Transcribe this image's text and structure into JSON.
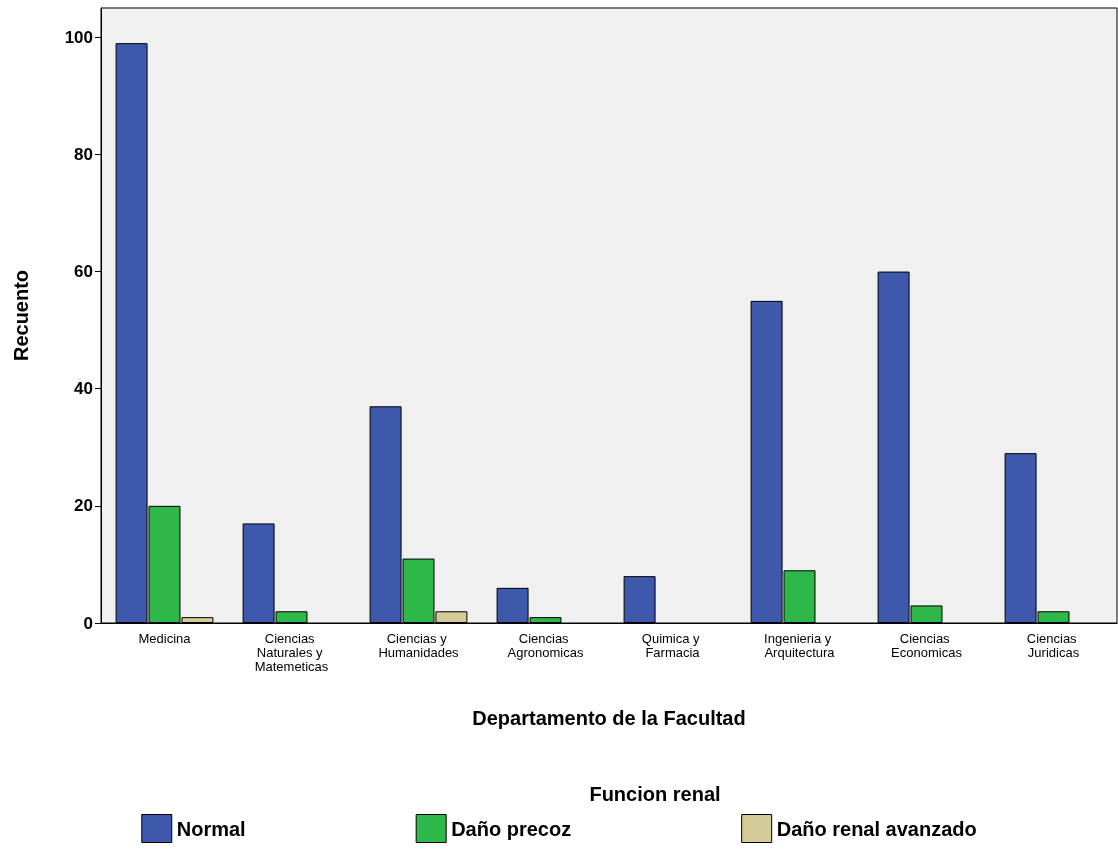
{
  "chart_data": {
    "type": "bar",
    "xlabel": "Departamento de la Facultad",
    "ylabel": "Recuento",
    "legend_title": "Funcion renal",
    "categories": [
      "Medicina",
      "Ciencias Naturales y Matemeticas",
      "Ciencias y Humanidades",
      "Ciencias Agronomicas",
      "Quimica y Farmacia",
      "Ingenieria y Arquitectura",
      "Ciencias Economicas",
      "Ciencias Juridicas"
    ],
    "series": [
      {
        "name": "Normal",
        "color": "#3e58ac",
        "values": [
          99,
          17,
          37,
          6,
          8,
          55,
          60,
          29
        ]
      },
      {
        "name": "Daño precoz",
        "color": "#2fb84a",
        "values": [
          20,
          2,
          11,
          1,
          null,
          9,
          3,
          2
        ]
      },
      {
        "name": "Daño renal avanzado",
        "color": "#d4cc96",
        "values": [
          1,
          null,
          2,
          null,
          null,
          null,
          null,
          null
        ]
      }
    ],
    "ylim": [
      0,
      105
    ],
    "yticks": [
      0,
      20,
      40,
      60,
      80,
      100
    ],
    "grid": false,
    "legend": "bottom"
  }
}
